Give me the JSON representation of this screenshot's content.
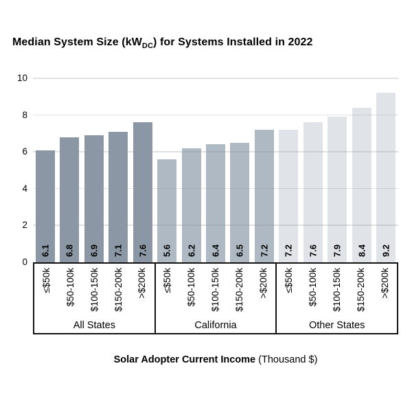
{
  "title": {
    "prefix": "Median System Size (kW",
    "subscript": "DC",
    "suffix": ") for Systems Installed in 2022"
  },
  "chart_data": {
    "type": "bar",
    "title": "Median System Size (kW_DC) for Systems Installed in 2022",
    "categories": [
      "≤$50k",
      "$50-100k",
      "$100-150k",
      "$150-200k",
      ">$200k"
    ],
    "groups": [
      {
        "name": "All States",
        "values": [
          6.1,
          6.8,
          6.9,
          7.1,
          7.6
        ],
        "color": "#8C97A5"
      },
      {
        "name": "California",
        "values": [
          5.6,
          6.2,
          6.4,
          6.5,
          7.2
        ],
        "color": "#AFB9C3"
      },
      {
        "name": "Other States",
        "values": [
          7.2,
          7.6,
          7.9,
          8.4,
          9.2
        ],
        "color": "#E0E3E8"
      }
    ],
    "ylim": [
      0,
      10
    ],
    "yticks": [
      0,
      2,
      4,
      6,
      8,
      10
    ],
    "grid": true,
    "legend": "none",
    "xlabel_bold": "Solar Adopter Current Income",
    "xlabel_regular": " (Thousand $)",
    "gridline_color": "#D8DADC",
    "axis_color": "#111111",
    "value_label_color": "#000000"
  }
}
